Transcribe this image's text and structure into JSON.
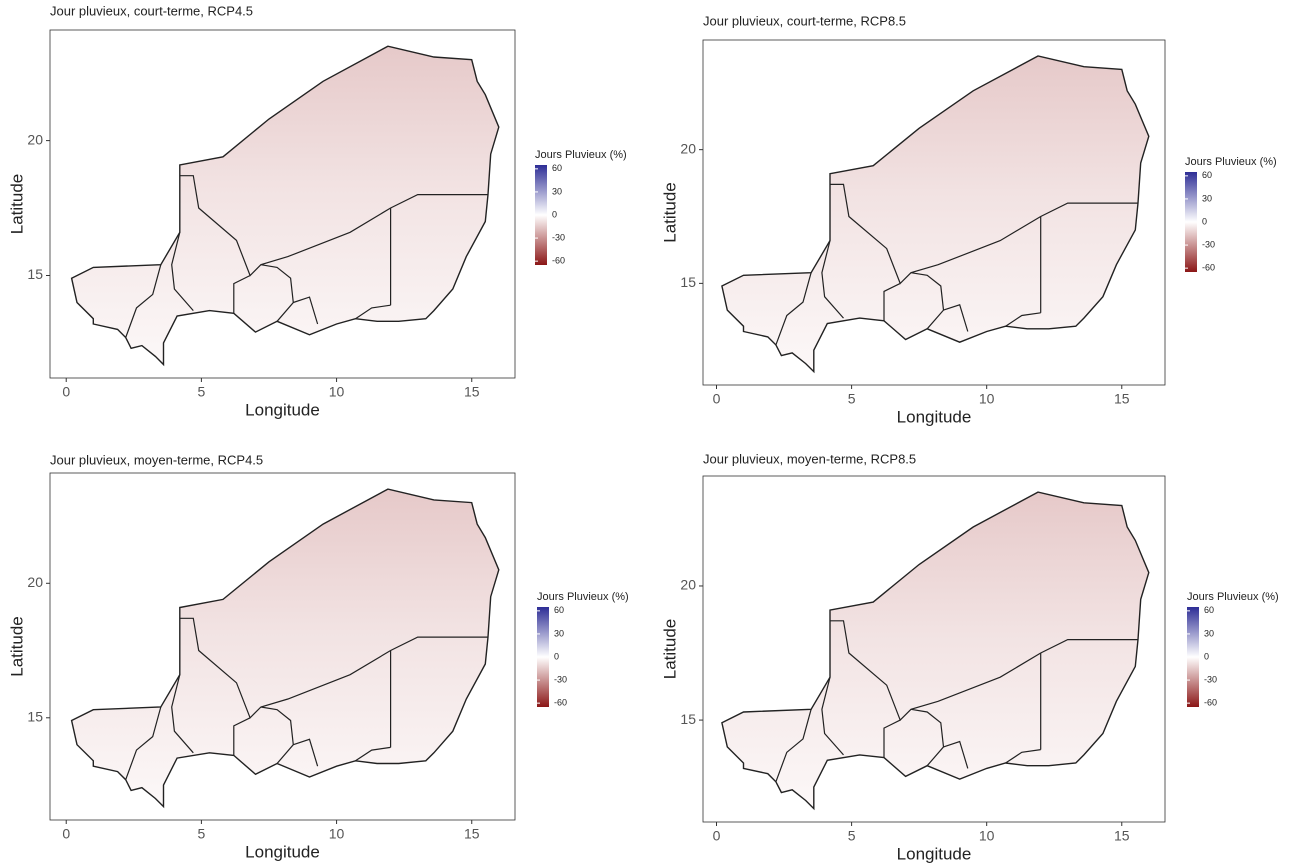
{
  "panels": [
    {
      "title": "Jour pluvieux, court-terme, RCP4.5",
      "xlabel": "Longitude",
      "ylabel": "Latitude",
      "xlim": [
        -0.6,
        16.6
      ],
      "ylim": [
        11.2,
        24.1
      ],
      "xticks": [
        0,
        5,
        10,
        15
      ],
      "yticks": [
        15,
        20
      ],
      "legend": {
        "title": "Jours Pluvieux (%)",
        "ticks": [
          60,
          30,
          0,
          -30,
          -60
        ],
        "lim": [
          -65,
          65
        ]
      }
    },
    {
      "title": "Jour pluvieux, court-terme, RCP8.5",
      "xlabel": "Longitude",
      "ylabel": "Latitude",
      "xlim": [
        -0.5,
        16.6
      ],
      "ylim": [
        11.2,
        24.1
      ],
      "xticks": [
        0,
        5,
        10,
        15
      ],
      "yticks": [
        15,
        20
      ],
      "legend": {
        "title": "Jours Pluvieux (%)",
        "ticks": [
          60,
          30,
          0,
          -30,
          -60
        ],
        "lim": [
          -65,
          65
        ]
      }
    },
    {
      "title": "Jour pluvieux, moyen-terme, RCP4.5",
      "xlabel": "Longitude",
      "ylabel": "Latitude",
      "xlim": [
        -0.6,
        16.6
      ],
      "ylim": [
        11.2,
        24.1
      ],
      "xticks": [
        0,
        5,
        10,
        15
      ],
      "yticks": [
        15,
        20
      ],
      "legend": {
        "title": "Jours Pluvieux (%)",
        "ticks": [
          60,
          30,
          0,
          -30,
          -60
        ],
        "lim": [
          -65,
          65
        ]
      }
    },
    {
      "title": "Jour pluvieux, moyen-terme, RCP8.5",
      "xlabel": "Longitude",
      "ylabel": "Latitude",
      "xlim": [
        -0.5,
        16.6
      ],
      "ylim": [
        11.2,
        24.1
      ],
      "xticks": [
        0,
        5,
        10,
        15
      ],
      "yticks": [
        15,
        20
      ],
      "legend": {
        "title": "Jours Pluvieux (%)",
        "ticks": [
          60,
          30,
          0,
          -30,
          -60
        ],
        "lim": [
          -65,
          65
        ]
      }
    }
  ]
}
